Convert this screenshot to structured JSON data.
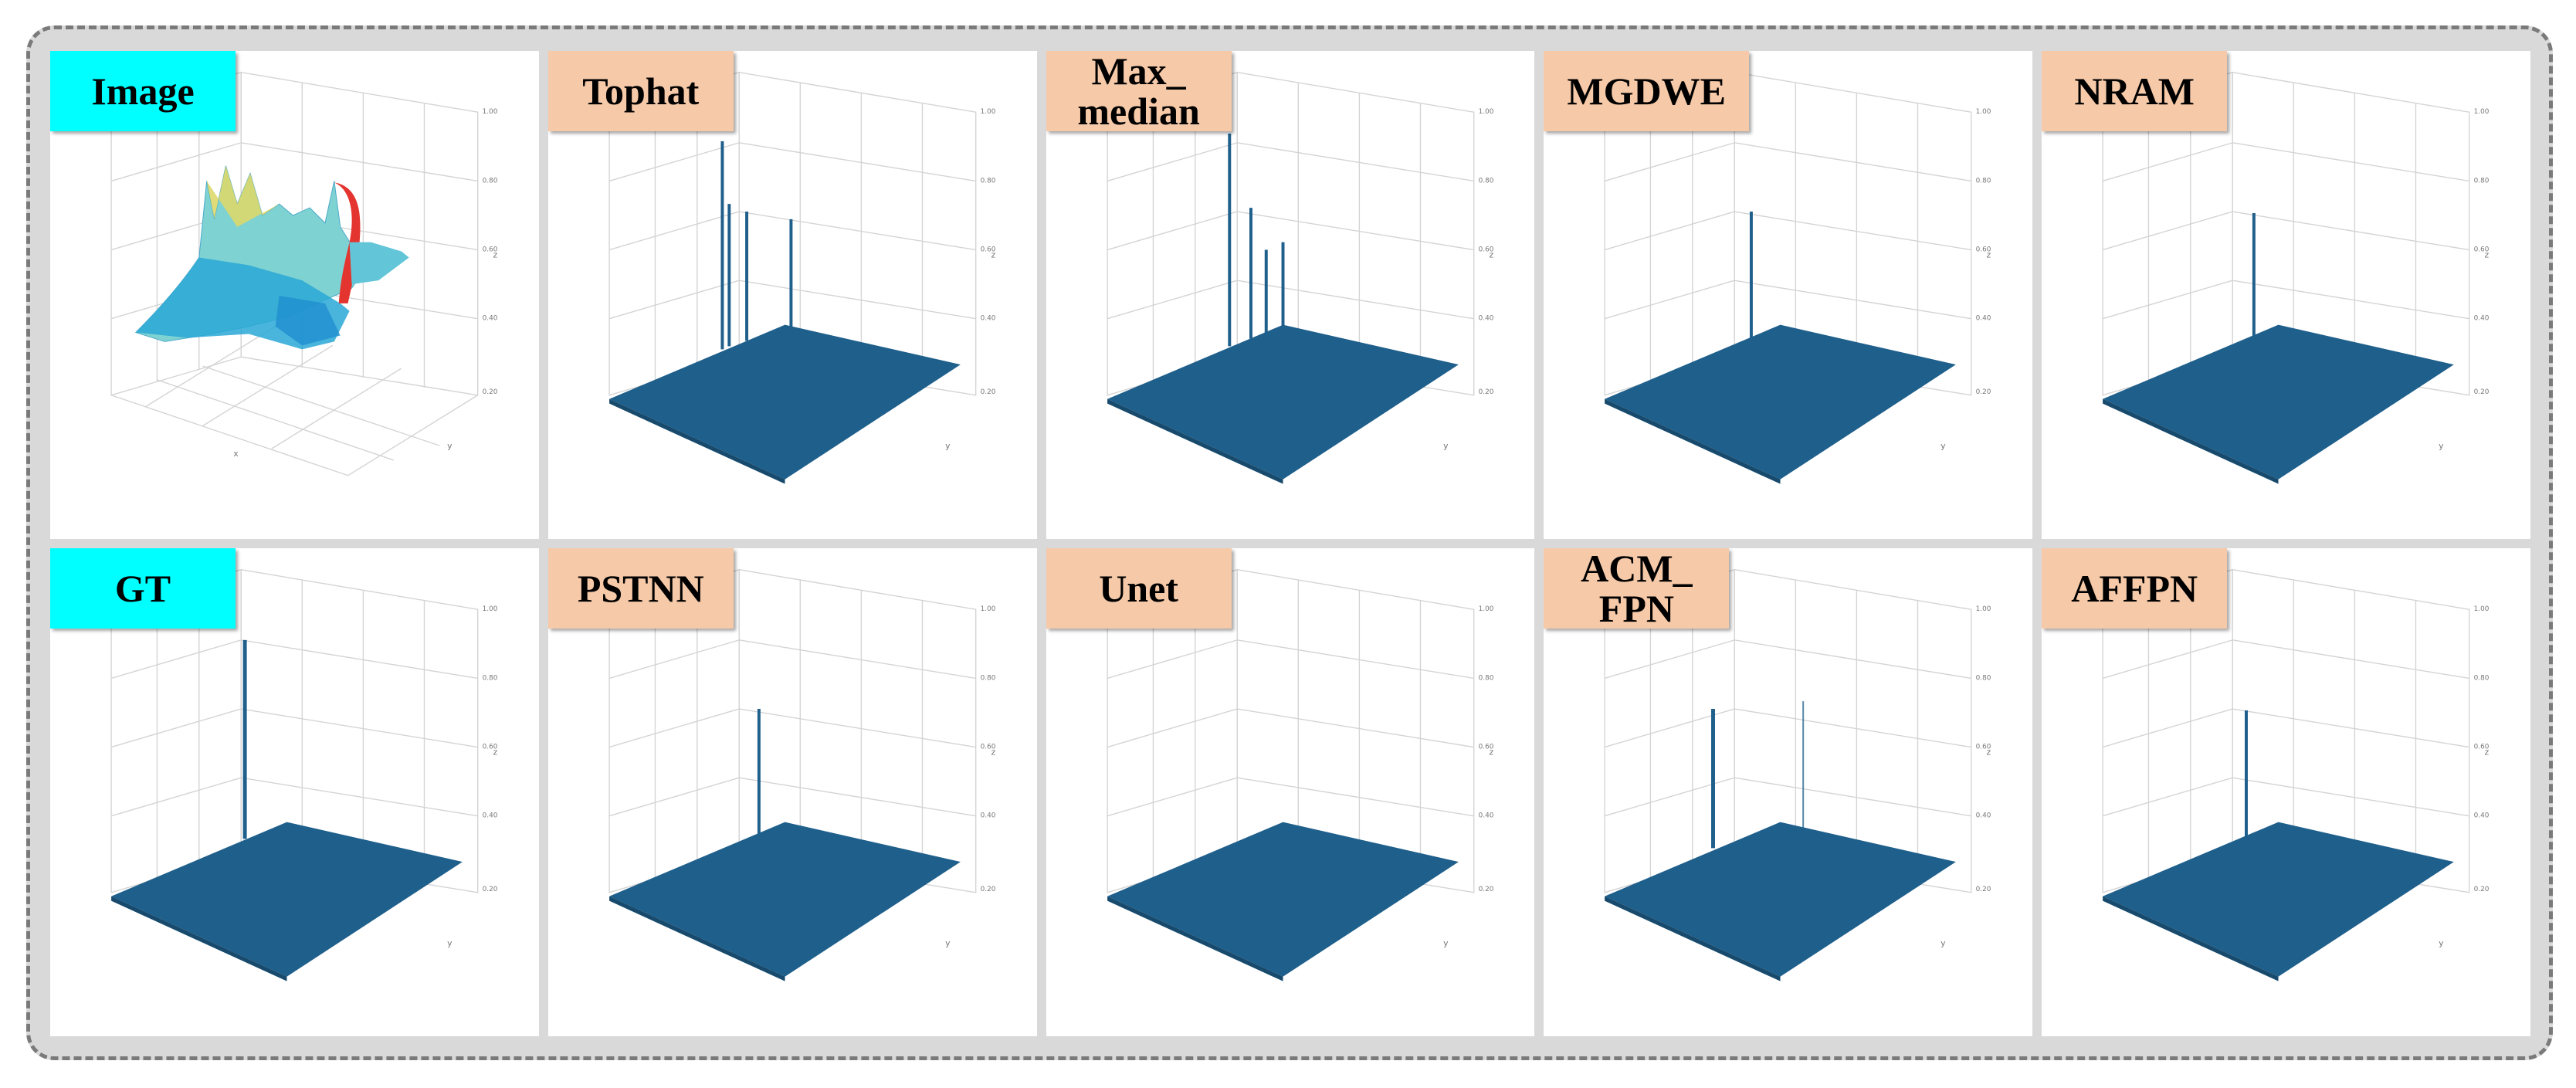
{
  "panels": [
    {
      "label": "Image",
      "kind": "input"
    },
    {
      "label": "Tophat",
      "kind": "method"
    },
    {
      "label": "Max_\nmedian",
      "kind": "method"
    },
    {
      "label": "MGDWE",
      "kind": "method"
    },
    {
      "label": "NRAM",
      "kind": "method"
    },
    {
      "label": "GT",
      "kind": "input"
    },
    {
      "label": "PSTNN",
      "kind": "method"
    },
    {
      "label": "Unet",
      "kind": "method"
    },
    {
      "label": "ACM_\nFPN",
      "kind": "method"
    },
    {
      "label": "AFFPN",
      "kind": "method"
    }
  ],
  "colors": {
    "input_label": "#00ffff",
    "method_label": "#f6c9a8",
    "surface": "#1f5f8b",
    "frame_border": "#7a7a7a"
  }
}
